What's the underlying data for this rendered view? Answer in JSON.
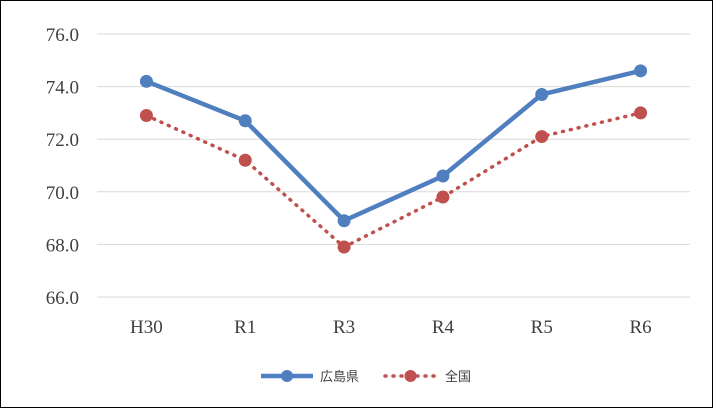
{
  "chart_data": {
    "type": "line",
    "categories": [
      "H30",
      "R1",
      "R3",
      "R4",
      "R5",
      "R6"
    ],
    "series": [
      {
        "name": "広島県",
        "values": [
          74.2,
          72.7,
          68.9,
          70.6,
          73.7,
          74.6
        ],
        "color": "#4f7fbf",
        "style": "solid"
      },
      {
        "name": "全国",
        "values": [
          72.9,
          71.2,
          67.9,
          69.8,
          72.1,
          73.0
        ],
        "color": "#c0504d",
        "style": "dotted"
      }
    ],
    "ylim": [
      66,
      76
    ],
    "yticks": [
      "66.0",
      "68.0",
      "70.0",
      "72.0",
      "74.0",
      "76.0"
    ],
    "grid": true,
    "legend": "bottom"
  }
}
